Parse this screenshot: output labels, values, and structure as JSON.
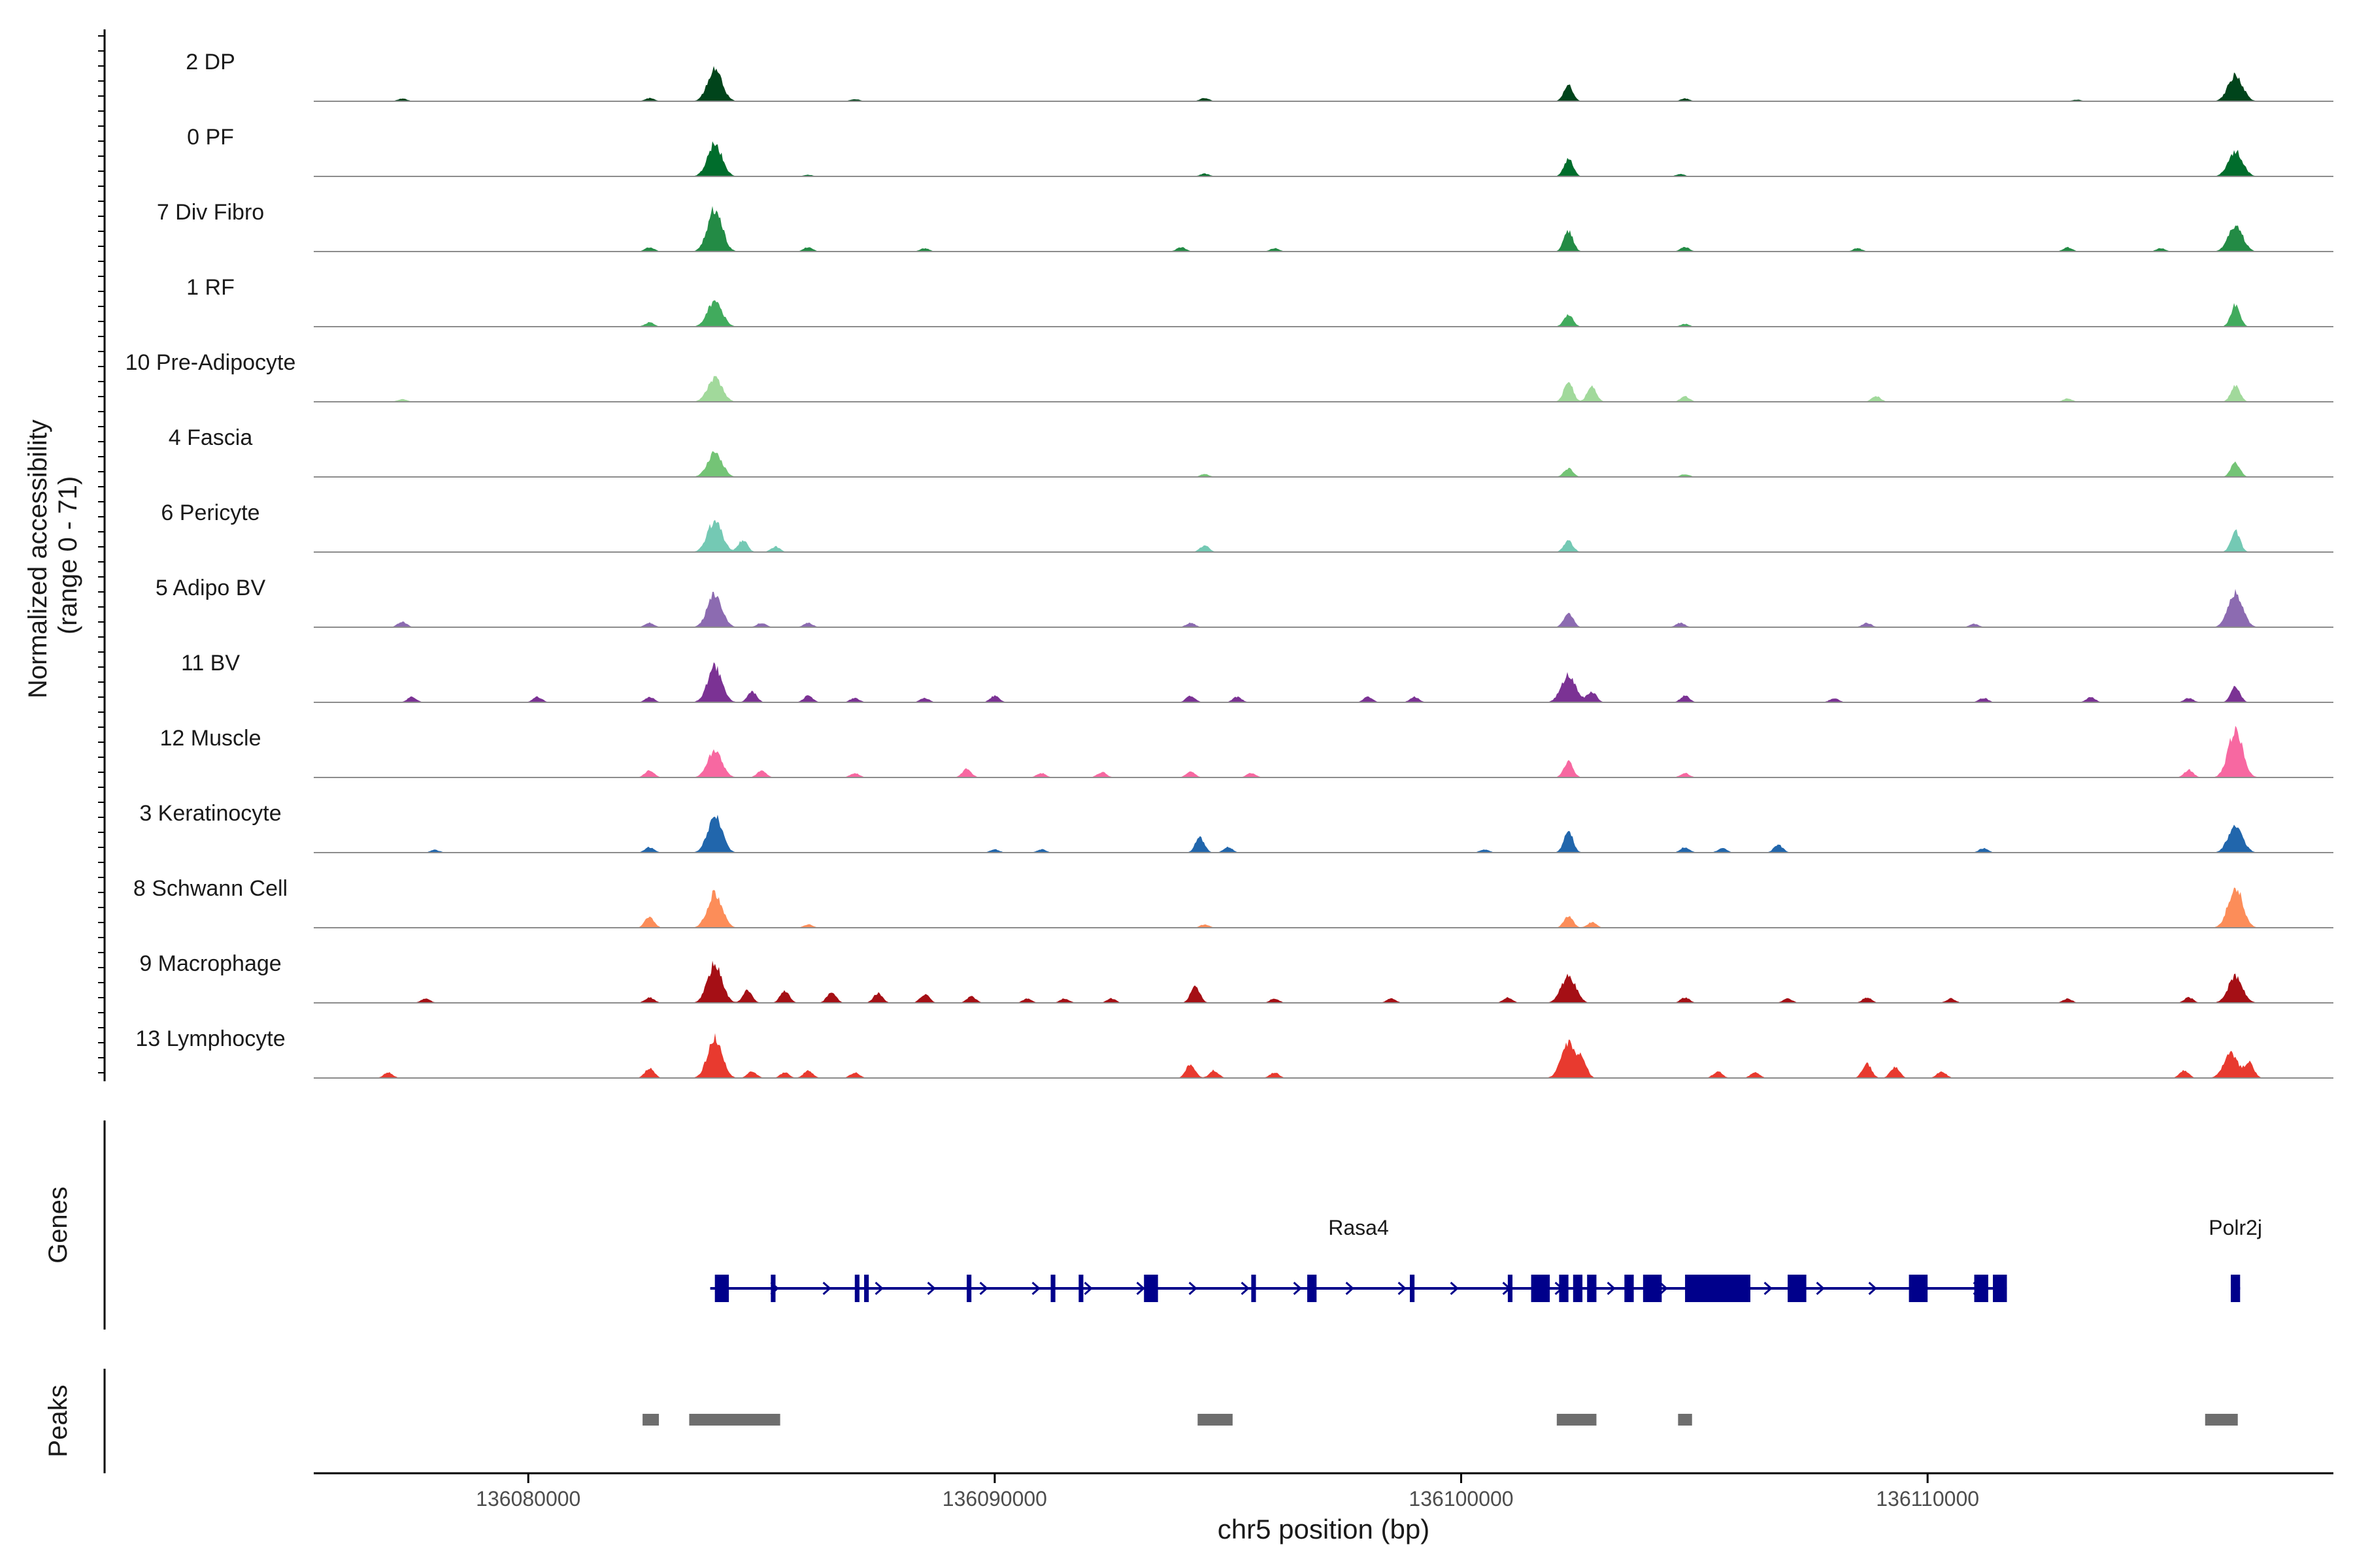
{
  "chart_data": {
    "type": "area",
    "title": "",
    "chromosome": "chr5",
    "xlabel": "chr5 position (bp)",
    "ylabel_line1": "Normalized accessibility",
    "ylabel_line2": "(range 0 - 71)",
    "y_range": [
      0,
      71
    ],
    "xlim": [
      136075400,
      136118700
    ],
    "x_ticks": [
      {
        "value": 136080000,
        "label": "136080000"
      },
      {
        "value": 136090000,
        "label": "136090000"
      },
      {
        "value": 136100000,
        "label": "136100000"
      },
      {
        "value": 136110000,
        "label": "136110000"
      }
    ],
    "tracks": [
      {
        "name": "2 DP",
        "color": "#00441b",
        "peaks": [
          [
            136084000,
            60
          ],
          [
            136102300,
            30
          ],
          [
            136116600,
            48
          ],
          [
            136077300,
            5
          ],
          [
            136082600,
            6
          ],
          [
            136094500,
            6
          ],
          [
            136104800,
            5
          ],
          [
            136087000,
            4
          ],
          [
            136113200,
            3
          ]
        ]
      },
      {
        "name": "0 PF",
        "color": "#006d2c",
        "peaks": [
          [
            136084000,
            60
          ],
          [
            136102300,
            32
          ],
          [
            136116600,
            46
          ],
          [
            136094500,
            5
          ],
          [
            136104700,
            4
          ],
          [
            136086000,
            3
          ]
        ]
      },
      {
        "name": "7 Div Fibro",
        "color": "#238b45",
        "peaks": [
          [
            136084000,
            80
          ],
          [
            136102300,
            38
          ],
          [
            136116600,
            48
          ],
          [
            136082600,
            8
          ],
          [
            136086000,
            8
          ],
          [
            136088500,
            6
          ],
          [
            136094000,
            8
          ],
          [
            136096000,
            6
          ],
          [
            136104800,
            8
          ],
          [
            136108500,
            6
          ],
          [
            136113000,
            8
          ],
          [
            136115000,
            6
          ]
        ]
      },
      {
        "name": "1 RF",
        "color": "#41ab5d",
        "peaks": [
          [
            136084000,
            48
          ],
          [
            136102300,
            22
          ],
          [
            136116600,
            40
          ],
          [
            136082600,
            8
          ],
          [
            136104800,
            5
          ]
        ]
      },
      {
        "name": "10 Pre-Adipocyte",
        "color": "#a1d99b",
        "peaks": [
          [
            136084000,
            44
          ],
          [
            136102300,
            36
          ],
          [
            136102800,
            28
          ],
          [
            136116600,
            30
          ],
          [
            136104800,
            10
          ],
          [
            136108900,
            10
          ],
          [
            136077300,
            5
          ],
          [
            136113000,
            6
          ]
        ]
      },
      {
        "name": "4 Fascia",
        "color": "#74c476",
        "peaks": [
          [
            136084000,
            46
          ],
          [
            136102300,
            16
          ],
          [
            136116600,
            26
          ],
          [
            136094500,
            5
          ],
          [
            136104800,
            5
          ]
        ]
      },
      {
        "name": "6 Pericyte",
        "color": "#74c9b4",
        "peaks": [
          [
            136084000,
            58
          ],
          [
            136084600,
            22
          ],
          [
            136085300,
            10
          ],
          [
            136094500,
            12
          ],
          [
            136102300,
            20
          ],
          [
            136116600,
            38
          ]
        ]
      },
      {
        "name": "5 Adipo BV",
        "color": "#8c6bb1",
        "peaks": [
          [
            136084000,
            62
          ],
          [
            136077300,
            10
          ],
          [
            136082600,
            8
          ],
          [
            136085000,
            8
          ],
          [
            136086000,
            8
          ],
          [
            136094200,
            8
          ],
          [
            136102300,
            28
          ],
          [
            136104700,
            8
          ],
          [
            136108700,
            8
          ],
          [
            136116600,
            64
          ],
          [
            136111000,
            6
          ]
        ]
      },
      {
        "name": "11 BV",
        "color": "#7b3294",
        "peaks": [
          [
            136084000,
            66
          ],
          [
            136084800,
            20
          ],
          [
            136077500,
            10
          ],
          [
            136080200,
            10
          ],
          [
            136082600,
            10
          ],
          [
            136086000,
            12
          ],
          [
            136087000,
            8
          ],
          [
            136088500,
            8
          ],
          [
            136090000,
            12
          ],
          [
            136094200,
            12
          ],
          [
            136095200,
            10
          ],
          [
            136098000,
            10
          ],
          [
            136099000,
            10
          ],
          [
            136102300,
            50
          ],
          [
            136102800,
            20
          ],
          [
            136104800,
            12
          ],
          [
            136108000,
            8
          ],
          [
            136111200,
            8
          ],
          [
            136113500,
            10
          ],
          [
            136116600,
            30
          ],
          [
            136115600,
            8
          ]
        ]
      },
      {
        "name": "12 Muscle",
        "color": "#f768a1",
        "peaks": [
          [
            136084000,
            50
          ],
          [
            136082600,
            14
          ],
          [
            136085000,
            12
          ],
          [
            136089400,
            16
          ],
          [
            136087000,
            8
          ],
          [
            136091000,
            8
          ],
          [
            136092300,
            10
          ],
          [
            136094200,
            10
          ],
          [
            136095500,
            8
          ],
          [
            136102300,
            30
          ],
          [
            136104800,
            8
          ],
          [
            136116600,
            85
          ],
          [
            136115600,
            14
          ]
        ]
      },
      {
        "name": "3 Keratinocyte",
        "color": "#2166ac",
        "peaks": [
          [
            136084000,
            66
          ],
          [
            136082600,
            10
          ],
          [
            136094400,
            28
          ],
          [
            136095000,
            10
          ],
          [
            136102300,
            40
          ],
          [
            136104800,
            10
          ],
          [
            136105600,
            8
          ],
          [
            136106800,
            14
          ],
          [
            136111200,
            8
          ],
          [
            136116600,
            50
          ],
          [
            136090000,
            6
          ],
          [
            136091000,
            6
          ],
          [
            136078000,
            5
          ],
          [
            136100500,
            6
          ]
        ]
      },
      {
        "name": "8 Schwann Cell",
        "color": "#fc8d59",
        "peaks": [
          [
            136084000,
            64
          ],
          [
            136082600,
            20
          ],
          [
            136102300,
            22
          ],
          [
            136102800,
            10
          ],
          [
            136116600,
            75
          ],
          [
            136086000,
            6
          ],
          [
            136094500,
            6
          ]
        ]
      },
      {
        "name": "9 Macrophage",
        "color": "#a50f15",
        "peaks": [
          [
            136084000,
            72
          ],
          [
            136084700,
            24
          ],
          [
            136077800,
            8
          ],
          [
            136082600,
            10
          ],
          [
            136085500,
            22
          ],
          [
            136086500,
            20
          ],
          [
            136087500,
            18
          ],
          [
            136088500,
            16
          ],
          [
            136089500,
            12
          ],
          [
            136090700,
            8
          ],
          [
            136091500,
            8
          ],
          [
            136092500,
            8
          ],
          [
            136094300,
            32
          ],
          [
            136096000,
            8
          ],
          [
            136098500,
            8
          ],
          [
            136101000,
            10
          ],
          [
            136102300,
            50
          ],
          [
            136104800,
            10
          ],
          [
            136107000,
            8
          ],
          [
            136108700,
            10
          ],
          [
            136110500,
            8
          ],
          [
            136113000,
            8
          ],
          [
            136115600,
            10
          ],
          [
            136116600,
            48
          ]
        ]
      },
      {
        "name": "13 Lymphocyte",
        "color": "#e83a2f",
        "peaks": [
          [
            136084000,
            74
          ],
          [
            136077000,
            10
          ],
          [
            136082600,
            18
          ],
          [
            136084800,
            12
          ],
          [
            136085500,
            10
          ],
          [
            136086000,
            14
          ],
          [
            136087000,
            10
          ],
          [
            136094200,
            26
          ],
          [
            136094700,
            14
          ],
          [
            136096000,
            10
          ],
          [
            136102300,
            62
          ],
          [
            136102600,
            30
          ],
          [
            136105500,
            12
          ],
          [
            136106300,
            10
          ],
          [
            136108700,
            26
          ],
          [
            136109300,
            20
          ],
          [
            136110300,
            12
          ],
          [
            136115500,
            14
          ],
          [
            136116500,
            44
          ],
          [
            136116900,
            28
          ]
        ]
      }
    ],
    "gene_track_label": "Genes",
    "genes": [
      {
        "name": "Rasa4",
        "strand": "+",
        "start": 136083900,
        "end": 136111700,
        "exons": [
          [
            136084000,
            136084300
          ],
          [
            136085200,
            136085300
          ],
          [
            136087000,
            136087100
          ],
          [
            136087200,
            136087300
          ],
          [
            136089400,
            136089500
          ],
          [
            136091200,
            136091300
          ],
          [
            136091800,
            136091900
          ],
          [
            136093200,
            136093500
          ],
          [
            136095500,
            136095600
          ],
          [
            136096700,
            136096900
          ],
          [
            136098900,
            136099000
          ],
          [
            136101000,
            136101100
          ],
          [
            136101500,
            136101900
          ],
          [
            136102100,
            136102300
          ],
          [
            136102400,
            136102600
          ],
          [
            136102700,
            136102900
          ],
          [
            136103500,
            136103700
          ],
          [
            136103900,
            136104300
          ],
          [
            136104800,
            136106200
          ],
          [
            136107000,
            136107400
          ],
          [
            136109600,
            136110000
          ],
          [
            136111000,
            136111300
          ],
          [
            136111400,
            136111700
          ]
        ]
      },
      {
        "name": "Polr2j",
        "strand": "+",
        "start": 136116500,
        "end": 136116700,
        "exons": [
          [
            136116500,
            136116700
          ]
        ]
      }
    ],
    "peak_track_label": "Peaks",
    "peak_regions": [
      [
        136082450,
        136082800
      ],
      [
        136083450,
        136085400
      ],
      [
        136094350,
        136095100
      ],
      [
        136102050,
        136102900
      ],
      [
        136104650,
        136104950
      ],
      [
        136115950,
        136116650
      ]
    ]
  }
}
